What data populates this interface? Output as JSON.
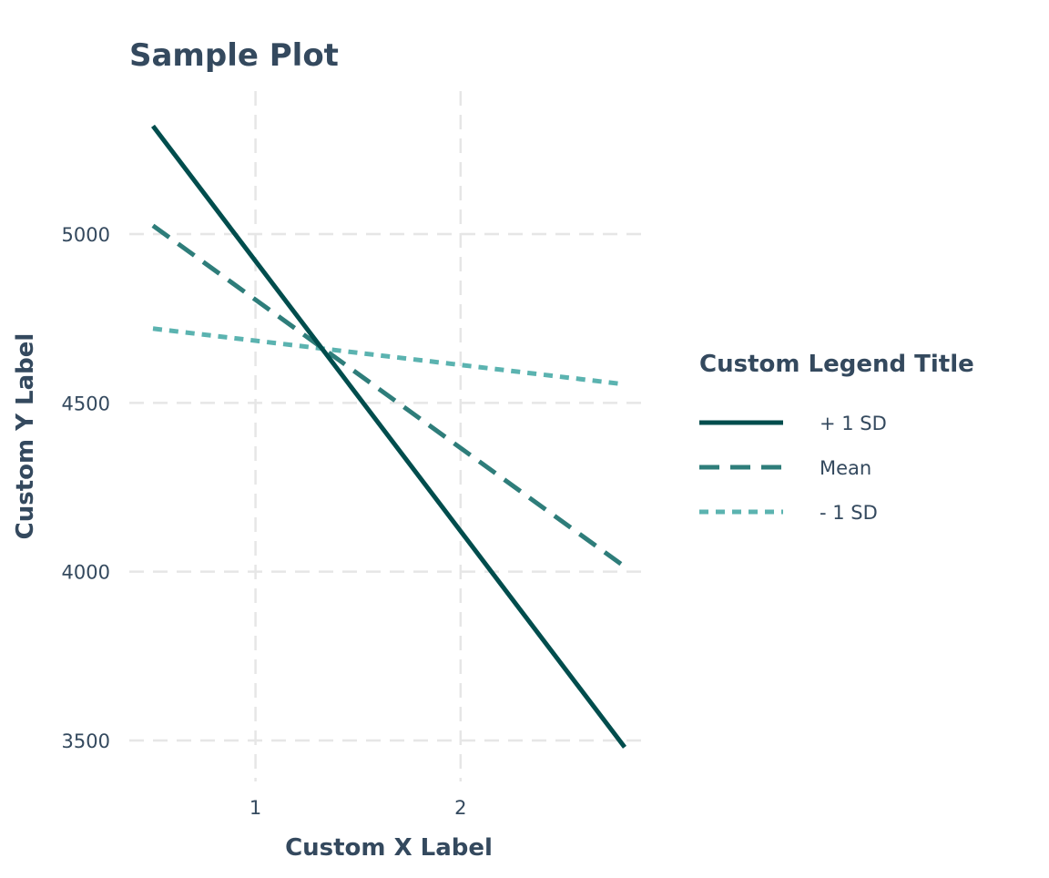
{
  "chart_data": {
    "type": "line",
    "title": "Sample Plot",
    "xlabel": "Custom X Label",
    "ylabel": "Custom Y Label",
    "x": [
      0.5,
      2.8
    ],
    "xlim": [
      0.5,
      2.8
    ],
    "ylim": [
      3400,
      5400
    ],
    "x_ticks": [
      1,
      2
    ],
    "y_ticks": [
      3500,
      4000,
      4500,
      5000
    ],
    "grid": true,
    "grid_style": "dashed",
    "legend": {
      "title": "Custom Legend Title",
      "position": "right"
    },
    "series": [
      {
        "name": "+ 1 SD",
        "values": [
          5320,
          3480
        ],
        "color": "#004d4d",
        "line_style": "solid"
      },
      {
        "name": "Mean",
        "values": [
          5025,
          4015
        ],
        "color": "#2e7d7a",
        "line_style": "dashed"
      },
      {
        "name": "- 1 SD",
        "values": [
          4720,
          4555
        ],
        "color": "#5bb3b0",
        "line_style": "dotted"
      }
    ]
  },
  "colors": {
    "text": "#34495e",
    "grid": "#e6e6e6"
  }
}
